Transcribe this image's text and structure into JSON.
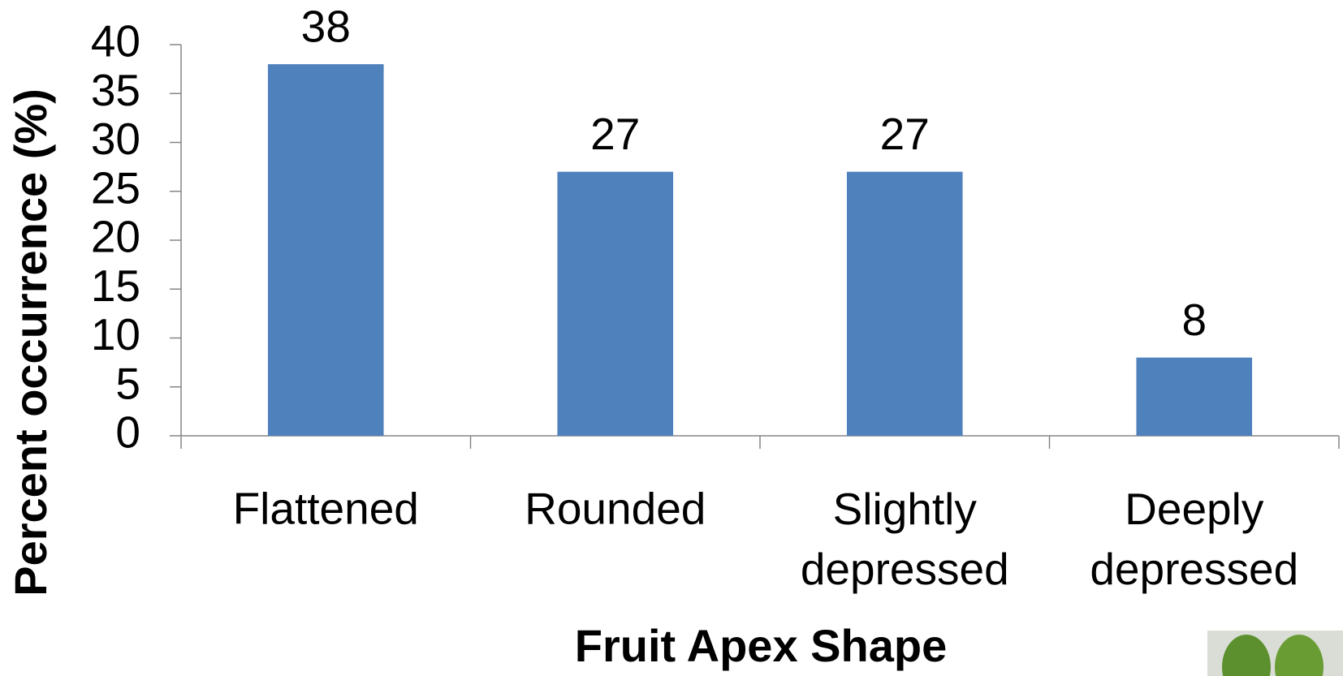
{
  "chart_data": {
    "type": "bar",
    "y_label": "Percent occurrence (%)",
    "x_label": "Fruit Apex Shape",
    "categories": [
      "Flattened",
      "Rounded",
      "Slightly depressed",
      "Deeply depressed"
    ],
    "values": [
      38,
      27,
      27,
      8
    ],
    "color": "#4f81bd",
    "ylim": [
      0,
      40
    ],
    "yticks": [
      0,
      5,
      10,
      15,
      20,
      25,
      30,
      35,
      40
    ],
    "grid": false
  }
}
